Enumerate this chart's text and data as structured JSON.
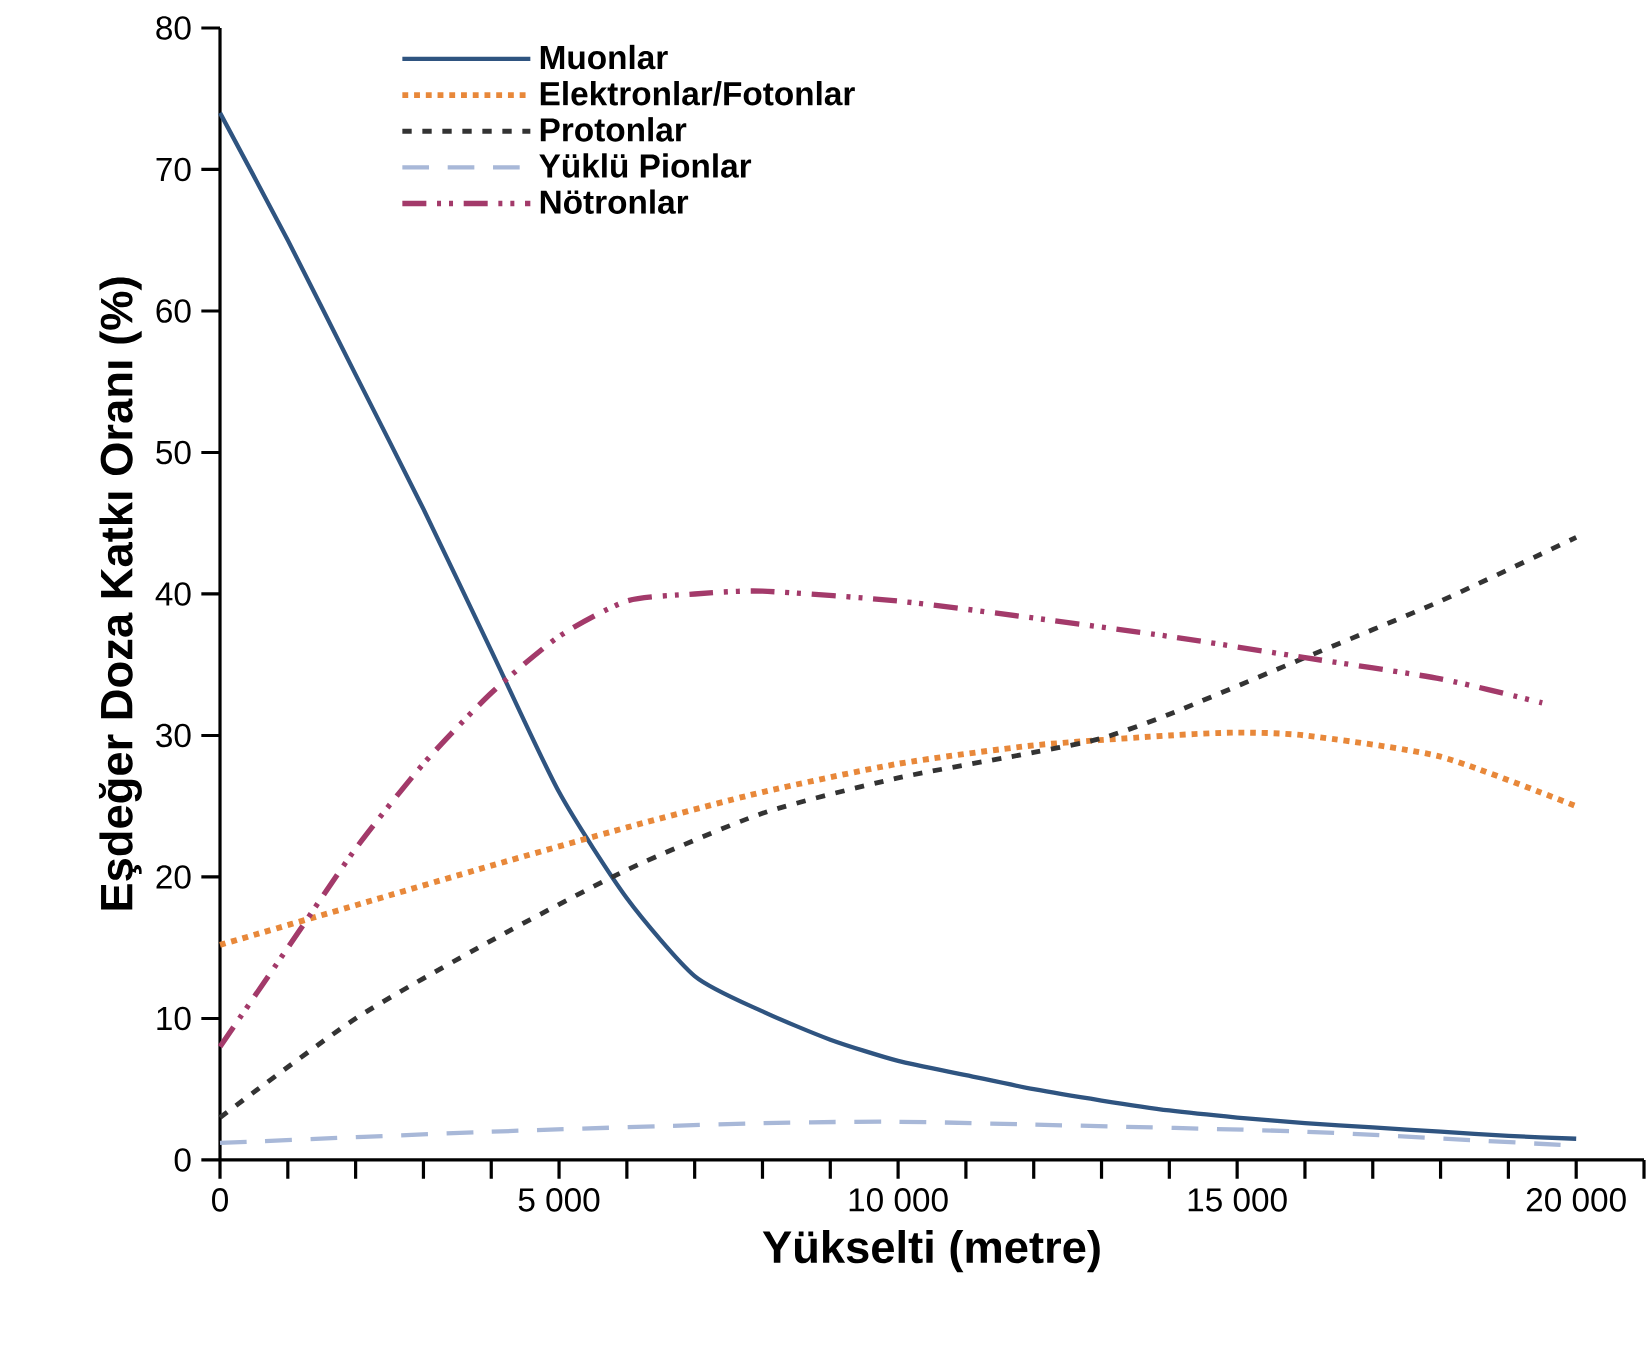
{
  "chart_data": {
    "type": "line",
    "xlabel": "Yükselti (metre)",
    "ylabel": "Eşdeğer Doza Katkı Oranı (%)",
    "xlim": [
      0,
      21000
    ],
    "ylim": [
      0,
      80
    ],
    "xticks": [
      0,
      {
        "value": 1000,
        "label": null
      },
      {
        "value": 2000,
        "label": null
      },
      {
        "value": 3000,
        "label": null
      },
      {
        "value": 4000,
        "label": null
      },
      {
        "value": 5000,
        "label": "5 000"
      },
      {
        "value": 6000,
        "label": null
      },
      {
        "value": 7000,
        "label": null
      },
      {
        "value": 8000,
        "label": null
      },
      {
        "value": 9000,
        "label": null
      },
      {
        "value": 10000,
        "label": "10 000"
      },
      {
        "value": 11000,
        "label": null
      },
      {
        "value": 12000,
        "label": null
      },
      {
        "value": 13000,
        "label": null
      },
      {
        "value": 14000,
        "label": null
      },
      {
        "value": 15000,
        "label": "15 000"
      },
      {
        "value": 16000,
        "label": null
      },
      {
        "value": 17000,
        "label": null
      },
      {
        "value": 18000,
        "label": null
      },
      {
        "value": 19000,
        "label": null
      },
      {
        "value": 20000,
        "label": "20 000"
      },
      {
        "value": 21000,
        "label": null
      }
    ],
    "yticks": [
      0,
      10,
      20,
      30,
      40,
      50,
      60,
      70,
      80
    ],
    "legend": "top left",
    "grid": false,
    "marker": "none",
    "series": [
      {
        "name": "Muonlar",
        "color": "#2f5480",
        "line_style": "solid",
        "x": [
          0,
          1000,
          2000,
          3000,
          4000,
          5000,
          6000,
          7000,
          8000,
          9000,
          10000,
          11000,
          12000,
          13000,
          14000,
          15000,
          16000,
          17000,
          18000,
          19000,
          20000
        ],
        "values": [
          74,
          65,
          55.5,
          46,
          36,
          26,
          18.5,
          13,
          10.5,
          8.5,
          7,
          6,
          5,
          4.2,
          3.5,
          3,
          2.6,
          2.3,
          2,
          1.7,
          1.5
        ]
      },
      {
        "name": "Elektronlar/Fotonlar",
        "color": "#e8883a",
        "line_style": "dotted",
        "x": [
          0,
          2000,
          4000,
          6000,
          8000,
          10000,
          12000,
          14000,
          15000,
          16000,
          18000,
          20000
        ],
        "values": [
          15.2,
          18,
          20.8,
          23.5,
          26,
          28,
          29.3,
          30,
          30.2,
          30,
          28.5,
          25
        ]
      },
      {
        "name": "Protonlar",
        "color": "#333333",
        "line_style": "dashed",
        "x": [
          0,
          2000,
          4000,
          6000,
          8000,
          10000,
          12000,
          13000,
          14000,
          16000,
          18000,
          20000
        ],
        "values": [
          3,
          10,
          15.5,
          20.5,
          24.5,
          27,
          28.8,
          29.8,
          31.5,
          35.5,
          39.5,
          44
        ]
      },
      {
        "name": "Yüklü Pionlar",
        "color": "#a8b8d8",
        "line_style": "loosely dashed",
        "x": [
          0,
          4000,
          8000,
          10000,
          12000,
          16000,
          20000
        ],
        "values": [
          1.2,
          2,
          2.6,
          2.7,
          2.5,
          2,
          1
        ]
      },
      {
        "name": "Nötronlar",
        "color": "#a33a6a",
        "line_style": "dashdotdotted",
        "x": [
          0,
          1000,
          2000,
          3000,
          4000,
          5000,
          6000,
          7000,
          8000,
          10000,
          12000,
          14000,
          16000,
          18000,
          19500
        ],
        "values": [
          8,
          15,
          22,
          28,
          33,
          37,
          39.5,
          40,
          40.2,
          39.5,
          38.3,
          37,
          35.5,
          34,
          32.3
        ]
      }
    ]
  }
}
